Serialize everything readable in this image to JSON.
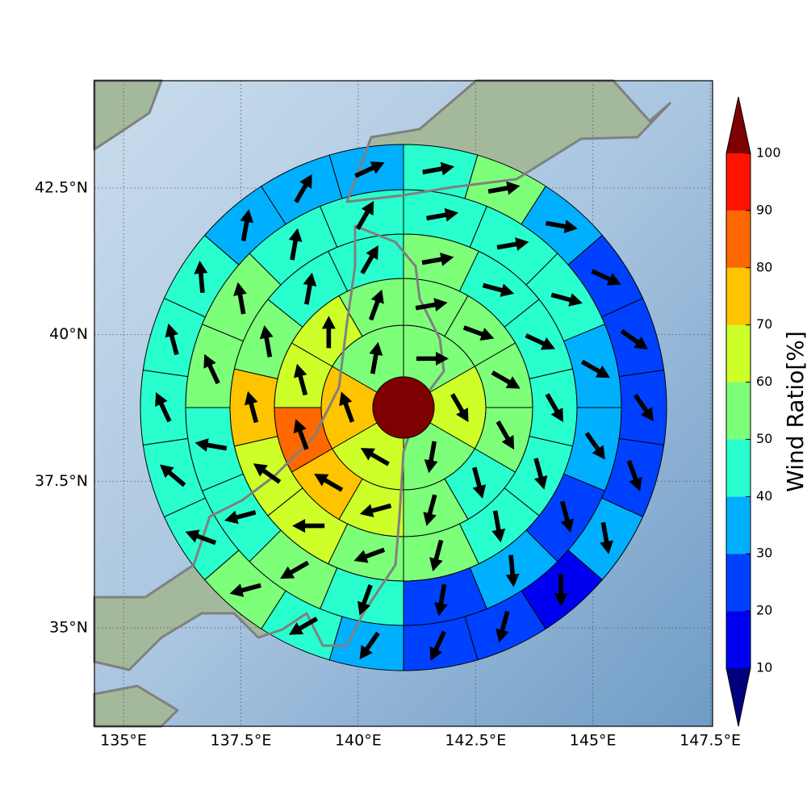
{
  "chart_data": {
    "type": "sector",
    "xlim": [
      134.38,
      147.55
    ],
    "ylim": [
      33.32,
      44.33
    ],
    "xticks": [
      {
        "value": 135,
        "label": "135°E"
      },
      {
        "value": 137.5,
        "label": "137.5°E"
      },
      {
        "value": 140,
        "label": "140°E"
      },
      {
        "value": 142.5,
        "label": "142.5°E"
      },
      {
        "value": 145,
        "label": "145°E"
      },
      {
        "value": 147.5,
        "label": "147.5°E"
      }
    ],
    "yticks": [
      {
        "value": 35,
        "label": "35°N"
      },
      {
        "value": 37.5,
        "label": "37.5°N"
      },
      {
        "value": 40,
        "label": "40°N"
      },
      {
        "value": 42.5,
        "label": "42.5°N"
      }
    ],
    "grid": true,
    "rings": [
      {
        "values": [
          55,
          65,
          55,
          65,
          75,
          55
        ],
        "directions": [
          90,
          150,
          190,
          300,
          340,
          10
        ]
      },
      {
        "values": [
          55,
          55,
          55,
          55,
          45,
          55,
          65,
          75,
          85,
          65,
          65,
          55
        ],
        "directions": [
          80,
          110,
          120,
          150,
          165,
          195,
          255,
          300,
          340,
          345,
          0,
          20
        ]
      },
      {
        "values": [
          55,
          45,
          45,
          45,
          45,
          45,
          55,
          55,
          65,
          65,
          75,
          55,
          45,
          45
        ],
        "directions": [
          80,
          105,
          115,
          150,
          165,
          170,
          195,
          250,
          270,
          305,
          345,
          350,
          10,
          30
        ]
      },
      {
        "values": [
          45,
          45,
          45,
          35,
          35,
          25,
          35,
          25,
          45,
          55,
          45,
          45,
          55,
          55,
          45,
          45
        ],
        "directions": [
          80,
          80,
          105,
          120,
          145,
          165,
          175,
          190,
          200,
          240,
          255,
          280,
          335,
          350,
          10,
          30
        ]
      },
      {
        "values": [
          45,
          55,
          35,
          25,
          25,
          25,
          25,
          35,
          15,
          25,
          25,
          35,
          45,
          55,
          45,
          45,
          45,
          45,
          45,
          35,
          35,
          35
        ],
        "directions": [
          80,
          80,
          100,
          115,
          125,
          145,
          160,
          170,
          180,
          195,
          205,
          215,
          240,
          255,
          290,
          310,
          335,
          345,
          355,
          10,
          30,
          65
        ]
      }
    ],
    "colorbar": {
      "label": "Wind Ratio[%]",
      "ticks": [
        10,
        20,
        30,
        40,
        50,
        60,
        70,
        80,
        90,
        100
      ],
      "colors": [
        "#00007f",
        "#0000f0",
        "#0040ff",
        "#00b0ff",
        "#29ffce",
        "#7dff7a",
        "#ceff29",
        "#ffc400",
        "#ff6800",
        "#ff1300",
        "#7f0000"
      ]
    }
  }
}
